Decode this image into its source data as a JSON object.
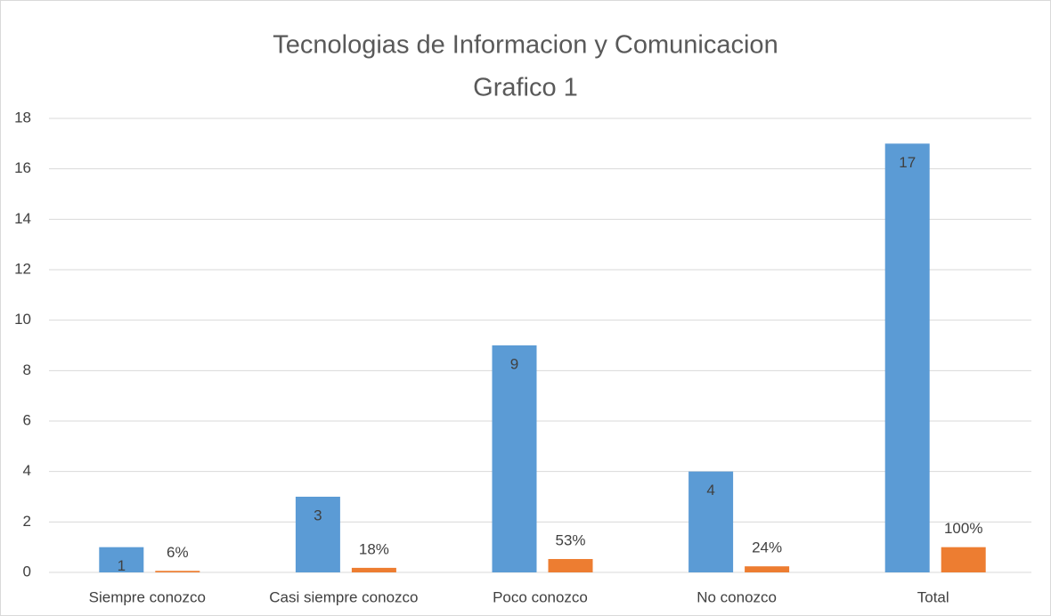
{
  "chart_data": {
    "type": "bar",
    "title": "Tecnologias de Informacion y Comunicacion",
    "subtitle": "Grafico 1",
    "categories": [
      "Siempre conozco",
      "Casi siempre conozco",
      "Poco conozco",
      "No conozco",
      "Total"
    ],
    "series": [
      {
        "color": "#5b9bd5",
        "values": [
          1,
          3,
          9,
          4,
          17
        ]
      },
      {
        "color": "#ed7d31",
        "values": [
          0.06,
          0.18,
          0.53,
          0.24,
          1
        ],
        "value_labels": [
          "6%",
          "18%",
          "53%",
          "24%",
          "100%"
        ]
      }
    ],
    "ylim": [
      0,
      18
    ],
    "yticks": [
      0,
      2,
      4,
      6,
      8,
      10,
      12,
      14,
      16,
      18
    ],
    "grid": true
  }
}
